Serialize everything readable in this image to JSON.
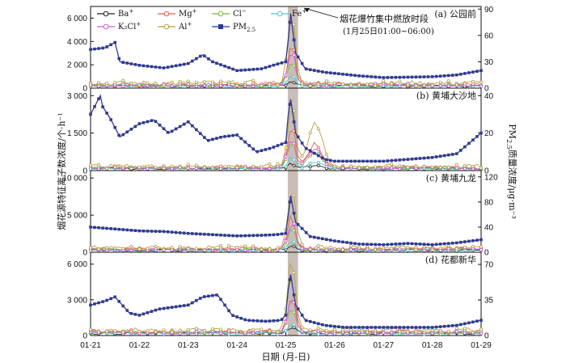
{
  "chart_data": {
    "type": "line",
    "x_labels": [
      "01-21",
      "01-22",
      "01-23",
      "01-24",
      "01-25",
      "01-26",
      "01-27",
      "01-28",
      "01-29"
    ],
    "xlabel": "日期 (月-日)",
    "ylabel_left": "烟花源特征离子数浓度/个·h⁻¹",
    "ylabel_right_parts": [
      "PM",
      "2.5",
      "质量浓度/μg·m⁻³"
    ],
    "legend": [
      {
        "label_parts": [
          "Ba",
          "+",
          ""
        ],
        "color": "#222222",
        "marker": "square-open"
      },
      {
        "label_parts": [
          "Mg",
          "+",
          ""
        ],
        "color": "#e8604c",
        "marker": "circle-open"
      },
      {
        "label_parts": [
          "Cl",
          "−",
          ""
        ],
        "color": "#7ab640",
        "marker": "triangle-open"
      },
      {
        "label_parts": [
          "Fe",
          "+",
          ""
        ],
        "color": "#4cc6d6",
        "marker": "triangle-down-open"
      },
      {
        "label_parts": [
          "K₂Cl",
          "+",
          ""
        ],
        "color": "#d058d8",
        "marker": "diamond-open"
      },
      {
        "label_parts": [
          "Al",
          "+",
          ""
        ],
        "color": "#b5a13a",
        "marker": "diamond-open"
      },
      {
        "label_parts": [
          "PM",
          "",
          "2.5"
        ],
        "color": "#2f3a8f",
        "marker": "square-filled"
      }
    ],
    "annotation": {
      "title": "烟花爆竹集中燃放时段",
      "range": "(1月25日01:00~06:00)"
    },
    "highlight": {
      "start": 4.04,
      "end": 4.25
    },
    "panels": [
      {
        "title": "(a) 公园前",
        "left_ticks": [
          "0",
          "2 000",
          "4 000",
          "6 000"
        ],
        "left_range": [
          0,
          7000
        ],
        "right_ticks": [
          "0",
          "30",
          "60",
          "90"
        ],
        "right_range": [
          0,
          93
        ],
        "pm25": {
          "x": [
            0,
            0.3,
            0.5,
            0.6,
            1,
            1.5,
            2,
            2.3,
            2.5,
            3,
            3.5,
            3.8,
            4,
            4.05,
            4.1,
            4.2,
            4.4,
            4.8,
            5.5,
            6,
            7,
            7.5,
            8
          ],
          "y": [
            44,
            46,
            52,
            30,
            26,
            23,
            28,
            38,
            30,
            20,
            22,
            27,
            30,
            55,
            85,
            40,
            22,
            18,
            14,
            12,
            13,
            15,
            20
          ]
        },
        "ions_peak": 6000,
        "ions_base": 650
      },
      {
        "title": "(b) 黄埔大沙地",
        "left_ticks": [
          "0",
          "1 500",
          "3 000"
        ],
        "left_range": [
          0,
          3300
        ],
        "right_ticks": [
          "0",
          "20",
          "40"
        ],
        "right_range": [
          0,
          44
        ],
        "pm25": {
          "x": [
            0,
            0.2,
            0.25,
            0.4,
            0.6,
            1,
            1.3,
            1.6,
            2,
            2.4,
            2.7,
            3,
            3.4,
            3.7,
            4,
            4.05,
            4.1,
            4.2,
            4.4,
            4.8,
            5,
            5.5,
            6,
            6.5,
            7,
            7.5,
            8
          ],
          "y": [
            30,
            40,
            34,
            28,
            18,
            25,
            27,
            20,
            26,
            16,
            18,
            19,
            10,
            12,
            15,
            30,
            38,
            20,
            12,
            6,
            5,
            5,
            5,
            6,
            7,
            9,
            20
          ]
        },
        "ions_peak": 2900,
        "ions_base": 260
      },
      {
        "title": "(c) 黄埔九龙",
        "left_ticks": [
          "0",
          "5 000",
          "10 000"
        ],
        "left_range": [
          0,
          11000
        ],
        "right_ticks": [
          "0",
          "40",
          "80",
          "120"
        ],
        "right_range": [
          0,
          130
        ],
        "pm25": {
          "x": [
            0,
            0.5,
            1,
            1.5,
            2,
            2.5,
            3,
            3.5,
            3.8,
            4,
            4.05,
            4.1,
            4.2,
            4.5,
            5,
            5.5,
            6,
            6.5,
            7,
            7.5,
            8
          ],
          "y": [
            40,
            37,
            34,
            33,
            30,
            28,
            26,
            27,
            28,
            30,
            60,
            90,
            48,
            25,
            18,
            13,
            12,
            14,
            12,
            15,
            20
          ]
        },
        "ions_peak": 8500,
        "ions_base": 900
      },
      {
        "title": "(d) 花都新华",
        "left_ticks": [
          "0",
          "3 000",
          "6 000"
        ],
        "left_range": [
          0,
          7000
        ],
        "right_ticks": [
          "0",
          "35",
          "70"
        ],
        "right_range": [
          0,
          82
        ],
        "pm25": {
          "x": [
            0,
            0.3,
            0.5,
            0.8,
            1,
            1.4,
            2,
            2.3,
            2.6,
            2.9,
            3.2,
            3.6,
            3.9,
            4,
            4.05,
            4.1,
            4.2,
            4.4,
            4.8,
            5.2,
            6,
            7,
            7.5,
            8
          ],
          "y": [
            30,
            34,
            38,
            22,
            20,
            26,
            30,
            38,
            40,
            20,
            15,
            14,
            15,
            20,
            45,
            60,
            30,
            15,
            10,
            8,
            8,
            8,
            10,
            15
          ]
        },
        "ions_peak": 6200,
        "ions_base": 650
      }
    ]
  }
}
